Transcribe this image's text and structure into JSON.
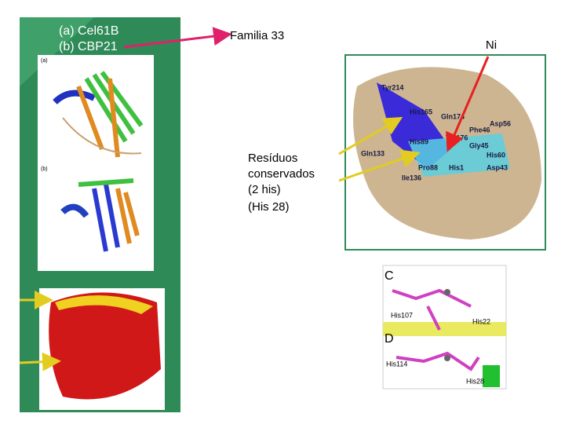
{
  "left_panel": {
    "legend": [
      "(a) Cel61B",
      "(b) CBP21"
    ],
    "panel_labels": [
      "(a)",
      "(b)"
    ]
  },
  "family_label": "Familia 33",
  "ni_label": "Ni",
  "conserved_note": [
    "Resíduos",
    "conservados",
    "(2 his)",
    "(His 28)"
  ],
  "surface_image": {
    "residues": [
      "Tyr214",
      "His165",
      "Gln174",
      "Asp56",
      "Phe46",
      "His89",
      "Tyr176",
      "Gly45",
      "Gln133",
      "His60",
      "Pro88",
      "His1",
      "Asp43",
      "Ile136"
    ]
  },
  "site_image": {
    "panels": [
      {
        "letter": "C",
        "residues": [
          "His107",
          "His22"
        ]
      },
      {
        "letter": "D",
        "residues": [
          "His114",
          "His28"
        ]
      }
    ]
  }
}
